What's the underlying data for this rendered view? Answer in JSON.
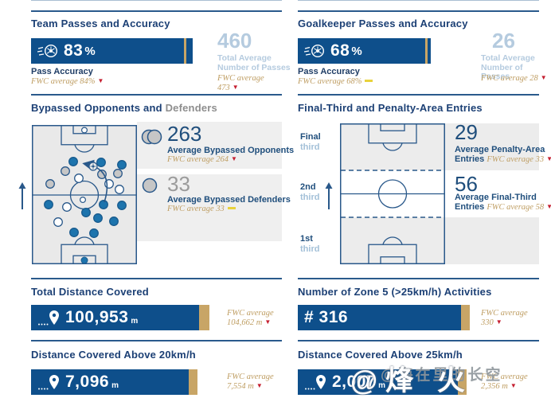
{
  "colors": {
    "navy_bar": "#0e4f8b",
    "navy_text": "#1c4075",
    "gold_text": "#bf9e63",
    "gold_bar": "#c8a566",
    "light_blue": "#b5cbdf",
    "red_down": "#c51f30",
    "yellow_equal": "#e8d23c",
    "field_gray": "#e9e9e9",
    "band_gray": "#efefef",
    "dot_blue": "#1d74ad",
    "dot_gray": "#c6c6c6"
  },
  "team_passes": {
    "title": "Team Passes and Accuracy",
    "value": "83",
    "unit": "%",
    "caption": "Pass Accuracy",
    "fwc": "FWC average 84%",
    "trend": "down",
    "side": {
      "value": "460",
      "line1": "Total Average",
      "line2": "Number of Passes",
      "fwc1": "FWC average",
      "fwc2": "473",
      "trend": "down"
    }
  },
  "gk_passes": {
    "title": "Goalkeeper Passes and Accuracy",
    "value": "68",
    "unit": "%",
    "caption": "Pass Accuracy",
    "fwc": "FWC average 68%",
    "trend": "equal",
    "side": {
      "value": "26",
      "line1": "Total Average",
      "line2": "Number of Passes",
      "fwc1": "FWC average 28",
      "trend": "down"
    }
  },
  "bypassed": {
    "title_main": "Bypassed Opponents and ",
    "title_muted": "Defenders",
    "stat1": {
      "value": "263",
      "label": "Average Bypassed Opponents",
      "fwc": "FWC average 264",
      "trend": "down"
    },
    "stat2": {
      "value": "33",
      "label": "Average Bypassed Defenders",
      "fwc": "FWC average 33",
      "trend": "equal"
    },
    "dots": {
      "blue": [
        [
          52,
          46
        ],
        [
          87,
          47
        ],
        [
          113,
          50
        ],
        [
          21,
          100
        ],
        [
          90,
          100
        ],
        [
          113,
          101
        ],
        [
          68,
          110
        ],
        [
          83,
          117
        ],
        [
          103,
          121
        ],
        [
          53,
          135
        ],
        [
          78,
          136
        ]
      ],
      "gray": [
        [
          42,
          58
        ],
        [
          88,
          62
        ],
        [
          108,
          61
        ],
        [
          23,
          74
        ]
      ],
      "white": [
        [
          59,
          67
        ],
        [
          97,
          74
        ],
        [
          110,
          81
        ],
        [
          44,
          103
        ],
        [
          33,
          122
        ]
      ]
    }
  },
  "entries": {
    "title": "Final-Third and Penalty-Area Entries",
    "zones": [
      {
        "bold": "Final",
        "light": "third"
      },
      {
        "bold": "2nd",
        "light": "third"
      },
      {
        "bold": "1st",
        "light": "third"
      }
    ],
    "stat1": {
      "value": "29",
      "line1": "Average Penalty-Area",
      "line2": "Entries",
      "fwc": "FWC average 33",
      "trend": "down"
    },
    "stat2": {
      "value": "56",
      "line1": "Average Final-Third",
      "line2": "Entries",
      "fwc": "FWC average 58",
      "trend": "down"
    }
  },
  "total_distance": {
    "title": "Total Distance Covered",
    "value": "100,953",
    "unit": "m",
    "fwc1": "FWC average",
    "fwc2": "104,662 m",
    "trend": "down"
  },
  "zone5": {
    "title": "Number of Zone 5 (>25km/h) Activities",
    "value": "# 316",
    "fwc1": "FWC average",
    "fwc2": "330",
    "trend": "down"
  },
  "dist20": {
    "title": "Distance Covered Above 20km/h",
    "value": "7,096",
    "unit": "m",
    "fwc1": "FWC average",
    "fwc2": "7,554 m",
    "trend": "down"
  },
  "dist25": {
    "title": "Distance Covered Above 25km/h",
    "value": "2,007",
    "unit": "m",
    "fwc1": "FWC average",
    "fwc2": "2,356 m",
    "trend": "down"
  },
  "watermark": {
    "primary": "@烽 火",
    "secondary": "@海在里的长空"
  }
}
